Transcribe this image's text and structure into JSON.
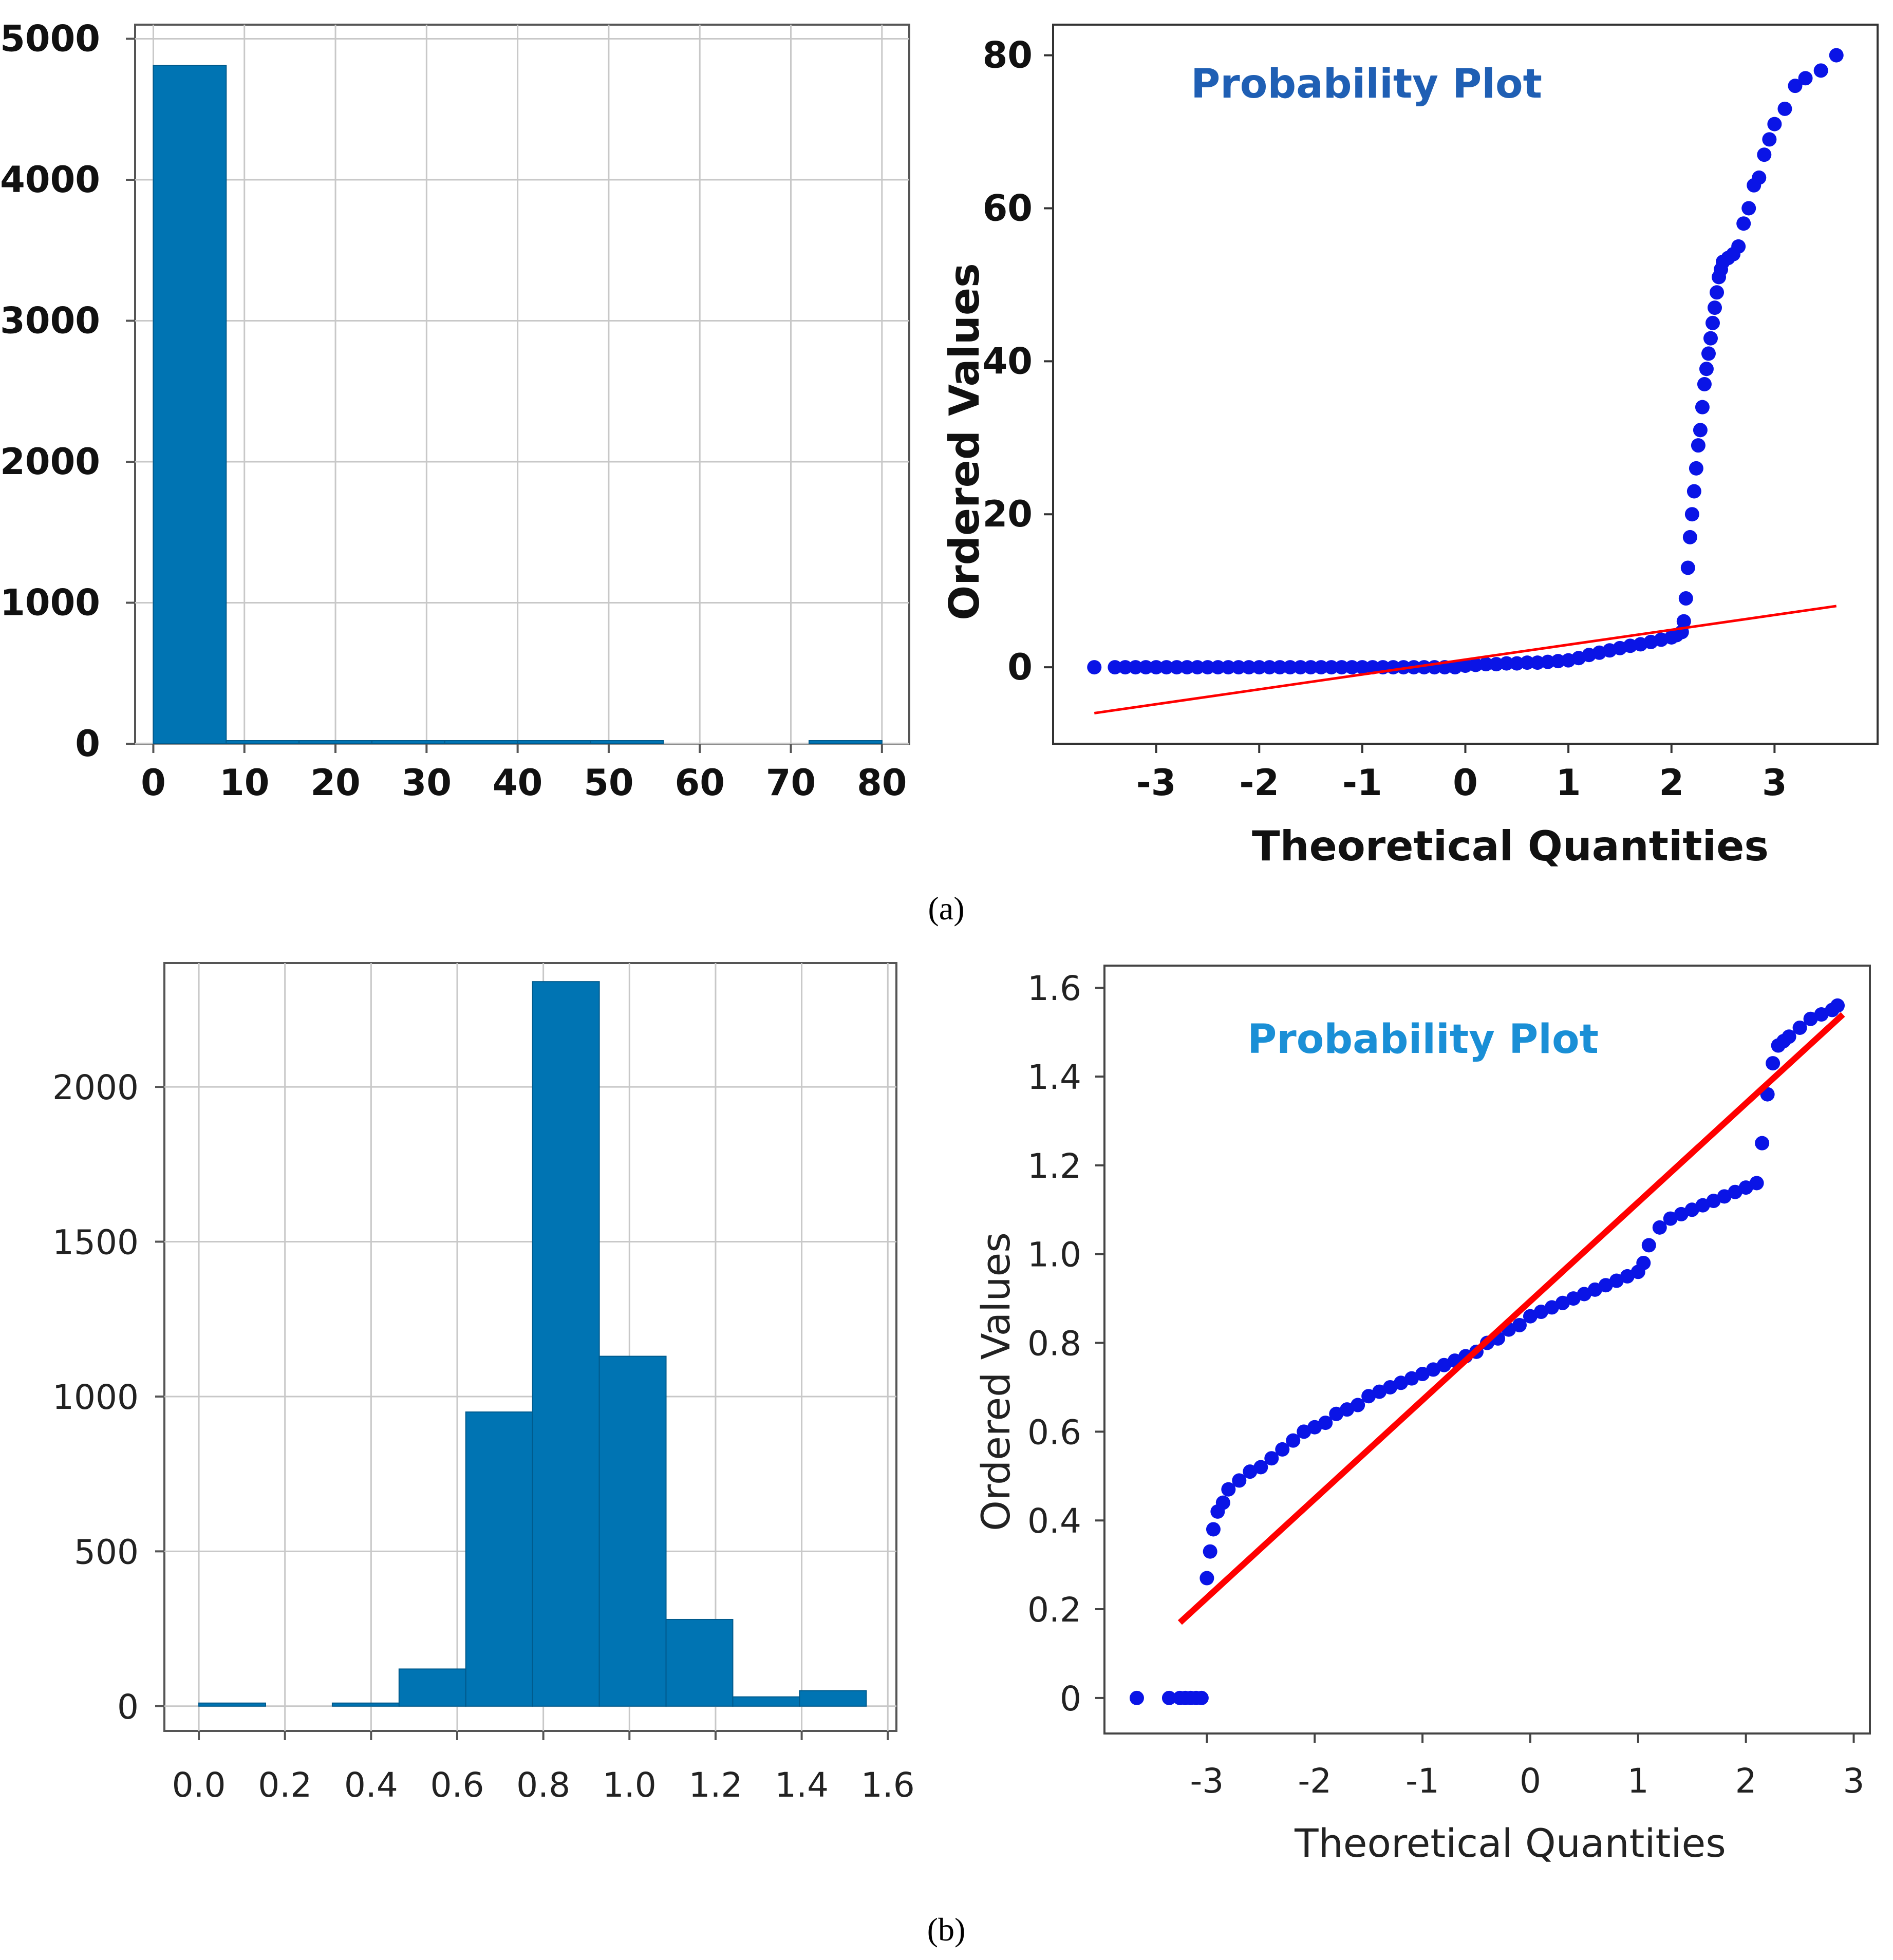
{
  "figure": {
    "captions": {
      "a": "(a)",
      "b": "(b)"
    }
  },
  "chart_data": [
    {
      "id": "a-hist",
      "type": "bar",
      "title": "",
      "xlabel": "",
      "ylabel": "",
      "xlim": [
        -2,
        83
      ],
      "ylim": [
        0,
        5100
      ],
      "xticks": [
        0,
        10,
        20,
        30,
        40,
        50,
        60,
        70,
        80
      ],
      "xtick_labels": [
        "0",
        "10",
        "20",
        "30",
        "40",
        "50",
        "60",
        "70",
        "80"
      ],
      "yticks": [
        0,
        1000,
        2000,
        3000,
        4000,
        5000
      ],
      "ytick_labels": [
        "0",
        "1000",
        "2000",
        "3000",
        "4000",
        "5000"
      ],
      "bin_edges": [
        0,
        8,
        16,
        24,
        32,
        40,
        48,
        56,
        64,
        72,
        80
      ],
      "values": [
        4810,
        10,
        8,
        8,
        10,
        10,
        6,
        0,
        0,
        12
      ],
      "grid": true,
      "colors": {
        "bar": "#0074b3",
        "edge": "#005a8c",
        "grid": "#c8c8c8",
        "axis": "#555555"
      }
    },
    {
      "id": "a-qq",
      "type": "scatter",
      "title": "Probability Plot",
      "xlabel": "Theoretical Quantities",
      "ylabel": "Ordered Values",
      "xlim": [
        -4,
        4
      ],
      "ylim": [
        -10,
        84
      ],
      "xticks": [
        -3,
        -2,
        -1,
        0,
        1,
        2,
        3
      ],
      "xtick_labels": [
        "-3",
        "-2",
        "-1",
        "0",
        "1",
        "2",
        "3"
      ],
      "yticks": [
        0,
        20,
        40,
        60,
        80
      ],
      "ytick_labels": [
        "0",
        "20",
        "40",
        "60",
        "80"
      ],
      "quantiles": {
        "x": [
          -3.6,
          -3.4,
          -3.3,
          -3.2,
          -3.1,
          -3.0,
          -2.9,
          -2.8,
          -2.7,
          -2.6,
          -2.5,
          -2.4,
          -2.3,
          -2.2,
          -2.1,
          -2.0,
          -1.9,
          -1.8,
          -1.7,
          -1.6,
          -1.5,
          -1.4,
          -1.3,
          -1.2,
          -1.1,
          -1.0,
          -0.9,
          -0.8,
          -0.7,
          -0.6,
          -0.5,
          -0.4,
          -0.3,
          -0.2,
          -0.1,
          0.0,
          0.1,
          0.2,
          0.3,
          0.4,
          0.5,
          0.6,
          0.7,
          0.8,
          0.9,
          1.0,
          1.1,
          1.2,
          1.3,
          1.4,
          1.5,
          1.6,
          1.7,
          1.8,
          1.9,
          2.0,
          2.05,
          2.1,
          2.12,
          2.14,
          2.16,
          2.18,
          2.2,
          2.22,
          2.24,
          2.26,
          2.28,
          2.3,
          2.32,
          2.34,
          2.36,
          2.38,
          2.4,
          2.42,
          2.44,
          2.46,
          2.48,
          2.5,
          2.55,
          2.6,
          2.65,
          2.7,
          2.75,
          2.8,
          2.85,
          2.9,
          2.95,
          3.0,
          3.1,
          3.2,
          3.3,
          3.45,
          3.6
        ],
        "y": [
          0,
          0,
          0,
          0,
          0,
          0,
          0,
          0,
          0,
          0,
          0,
          0,
          0,
          0,
          0,
          0,
          0,
          0,
          0,
          0,
          0,
          0,
          0,
          0,
          0,
          0,
          0,
          0,
          0,
          0,
          0,
          0,
          0,
          0,
          0,
          0.2,
          0.3,
          0.4,
          0.4,
          0.5,
          0.5,
          0.6,
          0.6,
          0.7,
          0.8,
          0.9,
          1.2,
          1.6,
          1.9,
          2.2,
          2.5,
          2.8,
          3.0,
          3.3,
          3.6,
          3.9,
          4.2,
          4.6,
          6,
          9,
          13,
          17,
          20,
          23,
          26,
          29,
          31,
          34,
          37,
          39,
          41,
          43,
          45,
          47,
          49,
          51,
          52,
          53,
          53.5,
          54,
          55,
          58,
          60,
          63,
          64,
          67,
          69,
          71,
          73,
          76,
          77,
          78,
          80
        ]
      },
      "fit_line": {
        "x": [
          -3.6,
          3.6
        ],
        "y": [
          -6,
          8
        ]
      },
      "grid": false,
      "colors": {
        "points": "#0a14e6",
        "line": "#ff0000",
        "title": "#1f5fb4",
        "axis": "#333333"
      }
    },
    {
      "id": "b-hist",
      "type": "bar",
      "title": "",
      "xlabel": "",
      "ylabel": "",
      "xlim": [
        -0.08,
        1.62
      ],
      "ylim": [
        -80,
        2400
      ],
      "xticks": [
        0.0,
        0.2,
        0.4,
        0.6,
        0.8,
        1.0,
        1.2,
        1.4,
        1.6
      ],
      "xtick_labels": [
        "0.0",
        "0.2",
        "0.4",
        "0.6",
        "0.8",
        "1.0",
        "1.2",
        "1.4",
        "1.6"
      ],
      "yticks": [
        0,
        500,
        1000,
        1500,
        2000
      ],
      "ytick_labels": [
        "0",
        "500",
        "1000",
        "1500",
        "2000"
      ],
      "bin_edges": [
        0.0,
        0.155,
        0.31,
        0.465,
        0.62,
        0.775,
        0.93,
        1.085,
        1.24,
        1.395,
        1.55
      ],
      "values": [
        10,
        0,
        10,
        120,
        950,
        2340,
        1130,
        280,
        30,
        50
      ],
      "grid": true,
      "colors": {
        "bar": "#0074b3",
        "edge": "#005a8c",
        "grid": "#c8c8c8",
        "axis": "#555555"
      }
    },
    {
      "id": "b-qq",
      "type": "scatter",
      "title": "Probability Plot",
      "xlabel": "Theoretical Quantities",
      "ylabel": "Ordered Values",
      "xlim": [
        -3.95,
        3.15
      ],
      "ylim": [
        -0.08,
        1.65
      ],
      "xticks": [
        -3,
        -2,
        -1,
        0,
        1,
        2,
        3
      ],
      "xtick_labels": [
        "-3",
        "-2",
        "-1",
        "0",
        "1",
        "2",
        "3"
      ],
      "yticks": [
        0,
        0.2,
        0.4,
        0.6,
        0.8,
        1.0,
        1.2,
        1.4,
        1.6
      ],
      "ytick_labels": [
        "0",
        "0.2",
        "0.4",
        "0.6",
        "0.8",
        "1.0",
        "1.2",
        "1.4",
        "1.6"
      ],
      "quantiles": {
        "x": [
          -3.65,
          -3.35,
          -3.25,
          -3.2,
          -3.15,
          -3.1,
          -3.05,
          -3.0,
          -2.97,
          -2.94,
          -2.9,
          -2.85,
          -2.8,
          -2.7,
          -2.6,
          -2.5,
          -2.4,
          -2.3,
          -2.2,
          -2.1,
          -2.0,
          -1.9,
          -1.8,
          -1.7,
          -1.6,
          -1.5,
          -1.4,
          -1.3,
          -1.2,
          -1.1,
          -1.0,
          -0.9,
          -0.8,
          -0.7,
          -0.6,
          -0.5,
          -0.4,
          -0.3,
          -0.2,
          -0.1,
          0.0,
          0.1,
          0.2,
          0.3,
          0.4,
          0.5,
          0.6,
          0.7,
          0.8,
          0.9,
          1.0,
          1.05,
          1.1,
          1.2,
          1.3,
          1.4,
          1.5,
          1.6,
          1.7,
          1.8,
          1.9,
          2.0,
          2.1,
          2.15,
          2.2,
          2.25,
          2.3,
          2.35,
          2.4,
          2.5,
          2.6,
          2.7,
          2.8,
          2.85
        ],
        "y": [
          0,
          0,
          0,
          0,
          0,
          0,
          0,
          0.27,
          0.33,
          0.38,
          0.42,
          0.44,
          0.47,
          0.49,
          0.51,
          0.52,
          0.54,
          0.56,
          0.58,
          0.6,
          0.61,
          0.62,
          0.64,
          0.65,
          0.66,
          0.68,
          0.69,
          0.7,
          0.71,
          0.72,
          0.73,
          0.74,
          0.75,
          0.76,
          0.77,
          0.78,
          0.8,
          0.81,
          0.83,
          0.84,
          0.86,
          0.87,
          0.88,
          0.89,
          0.9,
          0.91,
          0.92,
          0.93,
          0.94,
          0.95,
          0.96,
          0.98,
          1.02,
          1.06,
          1.08,
          1.09,
          1.1,
          1.11,
          1.12,
          1.13,
          1.14,
          1.15,
          1.16,
          1.25,
          1.36,
          1.43,
          1.47,
          1.48,
          1.49,
          1.51,
          1.53,
          1.54,
          1.55,
          1.56
        ]
      },
      "fit_line": {
        "x": [
          -3.25,
          2.9
        ],
        "y": [
          0.17,
          1.54
        ]
      },
      "grid": false,
      "colors": {
        "points": "#0a14e6",
        "line": "#ff0000",
        "title": "#1a8fd6",
        "axis": "#444444"
      }
    }
  ]
}
